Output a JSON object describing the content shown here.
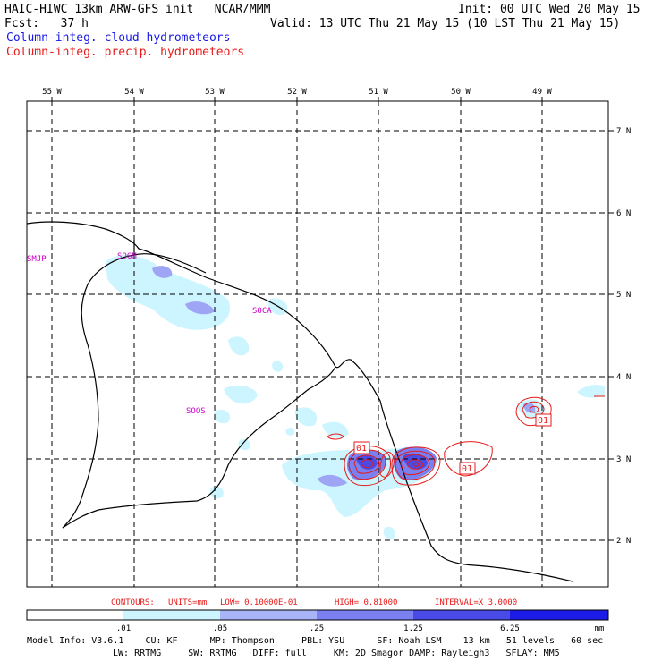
{
  "header": {
    "line1_left": "HAIC-HIWC 13km ARW-GFS init   NCAR/MMM",
    "line1_right": "Init: 00 UTC Wed 20 May 15",
    "line2_left": "Fcst:   37 h",
    "line2_right": "Valid: 13 UTC Thu 21 May 15 (10 LST Thu 21 May 15)",
    "legend_cloud": "Column-integ. cloud hydrometeors",
    "legend_precip": "Column-integ. precip. hydrometeors"
  },
  "map": {
    "lon_labels": [
      "55 W",
      "54 W",
      "53 W",
      "52 W",
      "51 W",
      "50 W",
      "49 W"
    ],
    "lat_labels": [
      "7 N",
      "6 N",
      "5 N",
      "4 N",
      "3 N",
      "2 N"
    ],
    "station_labels": [
      "SMJP",
      "SOGM",
      "SOCA",
      "SOOS"
    ],
    "contour_labels": [
      "01",
      "01",
      "01"
    ],
    "colors": {
      "cloud_light": "#ccf5ff",
      "cloud_mid": "#9fa5f5",
      "cloud_dark": "#5e63ea",
      "cloud_max": "#2d2de0",
      "precip_contour": "#e61a1a",
      "station": "#cc00cc",
      "coast": "#000000"
    }
  },
  "contour_info": {
    "contours": "CONTOURS:",
    "units": "UNITS=mm",
    "low": "LOW= 0.10000E-01",
    "high": "HIGH= 0.81000",
    "interval": "INTERVAL=X  3.0000"
  },
  "colorbar": {
    "colors": [
      "#ffffff",
      "#ccf5ff",
      "#a9b3f7",
      "#7a80ef",
      "#4a4ae6",
      "#1c1ce8"
    ],
    "tick_labels": [
      ".01",
      ".05",
      ".25",
      "1.25",
      "6.25"
    ],
    "unit": "mm"
  },
  "model_info": {
    "line1": "Model Info: V3.6.1    CU: KF      MP: Thompson     PBL: YSU      SF: Noah LSM    13 km   51 levels   60 sec",
    "line2": "LW: RRTMG     SW: RRTMG   DIFF: full     KM: 2D Smagor DAMP: Rayleigh3   SFLAY: MM5"
  }
}
